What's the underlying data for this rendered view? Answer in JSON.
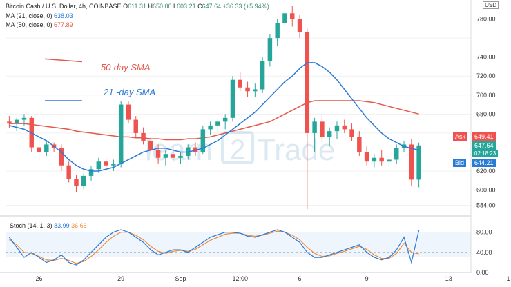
{
  "header": {
    "symbol": "Bitcoin Cash / U.S. Dollar, 4h, COINBASE",
    "open_label": "O",
    "open": "611.31",
    "high_label": "H",
    "high": "650.00",
    "low_label": "L",
    "low": "603.21",
    "close_label": "C",
    "close": "647.64",
    "change": "+36.33 (+5.94%)",
    "ma21_label": "MA (21, close, 0)",
    "ma21_value": "638.03",
    "ma50_label": "MA (50, close, 0)",
    "ma50_value": "677.89",
    "currency": "USD"
  },
  "annotations": {
    "sma50": "50-day SMA",
    "sma21": "21 -day SMA"
  },
  "stoch": {
    "label": "Stoch (14, 1, 3)",
    "k": "83.99",
    "d": "36.66"
  },
  "price_tags": {
    "ask_label": "Ask",
    "ask": "649.41",
    "last": "647.64",
    "countdown": "02:18:23",
    "bid_label": "Bid",
    "bid": "644.21"
  },
  "colors": {
    "up": "#26a69a",
    "down": "#ef5350",
    "ma21": "#2a7bd8",
    "ma50": "#e2584a",
    "stoch_k": "#2a7bd8",
    "stoch_d": "#f08a36"
  },
  "chart_data": {
    "type": "candlestick",
    "price_axis": {
      "ticks": [
        584,
        600,
        620,
        640,
        660,
        680,
        700,
        720,
        740,
        760,
        780
      ],
      "labels": [
        "584.00",
        "600.00",
        "620.00",
        "",
        "",
        "680.00",
        "700.00",
        "720.00",
        "740.00",
        "",
        "780.00"
      ],
      "ylim": [
        575,
        800
      ]
    },
    "stoch_axis": {
      "ticks": [
        0,
        40,
        80
      ],
      "labels": [
        "0.00",
        "40.00",
        "80.00"
      ],
      "ylim": [
        0,
        100
      ]
    },
    "x_axis": {
      "labels": [
        "26",
        "29",
        "Sep",
        "12:00",
        "6",
        "9",
        "13",
        "1"
      ],
      "positions": [
        4,
        15,
        23,
        31,
        39,
        48,
        59,
        67
      ]
    },
    "candles": [
      {
        "o": 672,
        "h": 678,
        "l": 665,
        "c": 670
      },
      {
        "o": 670,
        "h": 676,
        "l": 662,
        "c": 674
      },
      {
        "o": 674,
        "h": 680,
        "l": 668,
        "c": 676
      },
      {
        "o": 676,
        "h": 678,
        "l": 640,
        "c": 645
      },
      {
        "o": 645,
        "h": 655,
        "l": 632,
        "c": 640
      },
      {
        "o": 640,
        "h": 652,
        "l": 636,
        "c": 648
      },
      {
        "o": 648,
        "h": 650,
        "l": 640,
        "c": 644
      },
      {
        "o": 644,
        "h": 648,
        "l": 620,
        "c": 626
      },
      {
        "o": 626,
        "h": 630,
        "l": 608,
        "c": 612
      },
      {
        "o": 612,
        "h": 616,
        "l": 598,
        "c": 604
      },
      {
        "o": 604,
        "h": 618,
        "l": 600,
        "c": 615
      },
      {
        "o": 615,
        "h": 625,
        "l": 610,
        "c": 622
      },
      {
        "o": 622,
        "h": 634,
        "l": 618,
        "c": 630
      },
      {
        "o": 630,
        "h": 634,
        "l": 622,
        "c": 626
      },
      {
        "o": 626,
        "h": 632,
        "l": 620,
        "c": 628
      },
      {
        "o": 628,
        "h": 694,
        "l": 624,
        "c": 690
      },
      {
        "o": 690,
        "h": 694,
        "l": 670,
        "c": 674
      },
      {
        "o": 674,
        "h": 678,
        "l": 656,
        "c": 660
      },
      {
        "o": 660,
        "h": 666,
        "l": 648,
        "c": 652
      },
      {
        "o": 652,
        "h": 656,
        "l": 638,
        "c": 642
      },
      {
        "o": 642,
        "h": 648,
        "l": 628,
        "c": 634
      },
      {
        "o": 634,
        "h": 642,
        "l": 626,
        "c": 638
      },
      {
        "o": 638,
        "h": 644,
        "l": 630,
        "c": 634
      },
      {
        "o": 634,
        "h": 640,
        "l": 628,
        "c": 636
      },
      {
        "o": 636,
        "h": 648,
        "l": 632,
        "c": 645
      },
      {
        "o": 645,
        "h": 650,
        "l": 636,
        "c": 640
      },
      {
        "o": 640,
        "h": 668,
        "l": 638,
        "c": 664
      },
      {
        "o": 664,
        "h": 672,
        "l": 658,
        "c": 668
      },
      {
        "o": 668,
        "h": 676,
        "l": 660,
        "c": 672
      },
      {
        "o": 672,
        "h": 680,
        "l": 664,
        "c": 676
      },
      {
        "o": 676,
        "h": 720,
        "l": 672,
        "c": 716
      },
      {
        "o": 716,
        "h": 724,
        "l": 704,
        "c": 708
      },
      {
        "o": 708,
        "h": 714,
        "l": 698,
        "c": 704
      },
      {
        "o": 704,
        "h": 712,
        "l": 698,
        "c": 706
      },
      {
        "o": 706,
        "h": 740,
        "l": 702,
        "c": 736
      },
      {
        "o": 736,
        "h": 764,
        "l": 730,
        "c": 760
      },
      {
        "o": 760,
        "h": 780,
        "l": 752,
        "c": 776
      },
      {
        "o": 776,
        "h": 792,
        "l": 768,
        "c": 786
      },
      {
        "o": 786,
        "h": 794,
        "l": 772,
        "c": 780
      },
      {
        "o": 780,
        "h": 784,
        "l": 760,
        "c": 766
      },
      {
        "o": 766,
        "h": 770,
        "l": 580,
        "c": 660
      },
      {
        "o": 660,
        "h": 676,
        "l": 640,
        "c": 672
      },
      {
        "o": 672,
        "h": 680,
        "l": 650,
        "c": 656
      },
      {
        "o": 656,
        "h": 666,
        "l": 646,
        "c": 662
      },
      {
        "o": 662,
        "h": 672,
        "l": 654,
        "c": 668
      },
      {
        "o": 668,
        "h": 674,
        "l": 660,
        "c": 664
      },
      {
        "o": 664,
        "h": 670,
        "l": 652,
        "c": 656
      },
      {
        "o": 656,
        "h": 662,
        "l": 636,
        "c": 640
      },
      {
        "o": 640,
        "h": 646,
        "l": 626,
        "c": 630
      },
      {
        "o": 630,
        "h": 638,
        "l": 624,
        "c": 634
      },
      {
        "o": 634,
        "h": 642,
        "l": 626,
        "c": 630
      },
      {
        "o": 630,
        "h": 636,
        "l": 622,
        "c": 632
      },
      {
        "o": 632,
        "h": 648,
        "l": 628,
        "c": 644
      },
      {
        "o": 644,
        "h": 652,
        "l": 640,
        "c": 648
      },
      {
        "o": 648,
        "h": 654,
        "l": 604,
        "c": 611
      },
      {
        "o": 611,
        "h": 650,
        "l": 603,
        "c": 647
      }
    ],
    "ma21": [
      668,
      666,
      664,
      660,
      656,
      652,
      646,
      640,
      632,
      626,
      622,
      620,
      620,
      622,
      624,
      628,
      632,
      636,
      640,
      642,
      644,
      644,
      642,
      640,
      640,
      642,
      644,
      648,
      652,
      658,
      664,
      670,
      676,
      682,
      690,
      698,
      706,
      714,
      720,
      728,
      734,
      734,
      730,
      724,
      716,
      706,
      696,
      686,
      676,
      668,
      660,
      654,
      650,
      646,
      644,
      642
    ],
    "ma50": [
      670,
      670,
      670,
      669,
      668,
      667,
      666,
      665,
      664,
      662,
      661,
      660,
      659,
      658,
      657,
      656,
      656,
      655,
      655,
      654,
      654,
      653,
      653,
      653,
      654,
      654,
      655,
      656,
      658,
      660,
      662,
      664,
      666,
      668,
      670,
      672,
      676,
      680,
      684,
      688,
      692,
      694,
      694,
      694,
      694,
      694,
      694,
      694,
      693,
      692,
      690,
      688,
      686,
      684,
      682,
      680
    ],
    "stoch_k": [
      70,
      50,
      30,
      40,
      30,
      20,
      25,
      35,
      20,
      15,
      25,
      40,
      55,
      70,
      80,
      85,
      80,
      70,
      60,
      45,
      35,
      40,
      45,
      45,
      40,
      50,
      60,
      70,
      75,
      80,
      80,
      78,
      72,
      70,
      75,
      80,
      85,
      80,
      70,
      60,
      40,
      30,
      30,
      35,
      40,
      45,
      50,
      55,
      40,
      30,
      25,
      30,
      45,
      70,
      20,
      84
    ],
    "stoch_d": [
      65,
      55,
      40,
      38,
      32,
      25,
      24,
      28,
      24,
      18,
      22,
      32,
      45,
      60,
      72,
      80,
      80,
      74,
      65,
      52,
      42,
      38,
      42,
      44,
      42,
      46,
      55,
      64,
      70,
      76,
      78,
      78,
      74,
      72,
      74,
      78,
      82,
      80,
      74,
      65,
      50,
      38,
      32,
      33,
      38,
      42,
      47,
      52,
      46,
      35,
      28,
      28,
      38,
      58,
      40,
      37
    ],
    "annotation_lines": [
      {
        "name": "50-day SMA",
        "color": "#e2584a",
        "x": [
          2,
          7
        ],
        "y": [
          738,
          735
        ]
      },
      {
        "name": "21 -day SMA",
        "color": "#2a7bd8",
        "x": [
          2,
          7
        ],
        "y": [
          694,
          694
        ]
      }
    ]
  }
}
